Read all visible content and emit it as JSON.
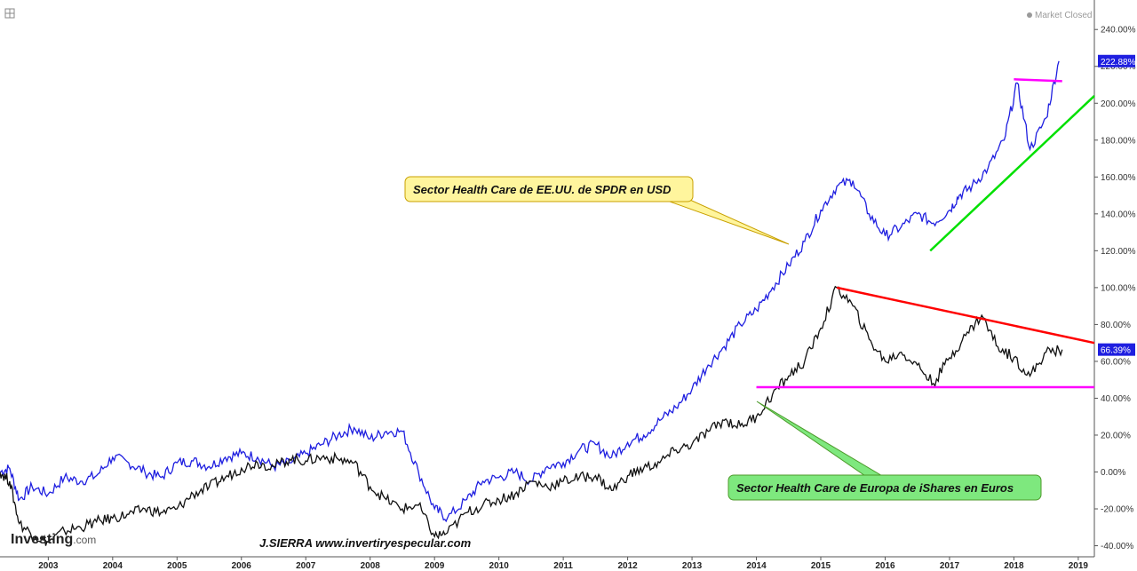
{
  "header": {
    "market_status": "Market Closed",
    "expand_icon": "expand-icon"
  },
  "chart_data": {
    "type": "line",
    "xlabel": "",
    "ylabel": "",
    "x_ticks": [
      "2003",
      "2004",
      "2005",
      "2006",
      "2007",
      "2008",
      "2009",
      "2010",
      "2011",
      "2012",
      "2013",
      "2014",
      "2015",
      "2016",
      "2017",
      "2018",
      "2019"
    ],
    "y_ticks": [
      "240.00%",
      "220.00%",
      "200.00%",
      "180.00%",
      "160.00%",
      "140.00%",
      "120.00%",
      "100.00%",
      "80.00%",
      "60.00%",
      "40.00%",
      "20.00%",
      "0.00%",
      "-20.00%",
      "-40.00%"
    ],
    "xlim": [
      2002.25,
      2019.25
    ],
    "ylim": [
      -46,
      256
    ],
    "grid": false,
    "series": [
      {
        "name": "",
        "color": "#1f1fe0",
        "last_value_label": "222.88%",
        "last_value": 222.88,
        "points": [
          [
            2002.25,
            0
          ],
          [
            2002.4,
            2
          ],
          [
            2002.55,
            -15
          ],
          [
            2002.75,
            -8
          ],
          [
            2003.0,
            -12
          ],
          [
            2003.25,
            -3
          ],
          [
            2003.5,
            -5
          ],
          [
            2003.75,
            -2
          ],
          [
            2004.0,
            8
          ],
          [
            2004.25,
            5
          ],
          [
            2004.5,
            0
          ],
          [
            2004.75,
            -3
          ],
          [
            2005.0,
            5
          ],
          [
            2005.25,
            6
          ],
          [
            2005.5,
            3
          ],
          [
            2005.75,
            8
          ],
          [
            2006.0,
            10
          ],
          [
            2006.25,
            8
          ],
          [
            2006.5,
            3
          ],
          [
            2006.75,
            5
          ],
          [
            2007.0,
            10
          ],
          [
            2007.25,
            15
          ],
          [
            2007.5,
            20
          ],
          [
            2007.75,
            24
          ],
          [
            2008.0,
            18
          ],
          [
            2008.25,
            22
          ],
          [
            2008.5,
            22
          ],
          [
            2008.75,
            0
          ],
          [
            2009.0,
            -20
          ],
          [
            2009.2,
            -25
          ],
          [
            2009.5,
            -15
          ],
          [
            2009.75,
            -5
          ],
          [
            2010.0,
            -3
          ],
          [
            2010.25,
            0
          ],
          [
            2010.5,
            -5
          ],
          [
            2010.75,
            3
          ],
          [
            2011.0,
            5
          ],
          [
            2011.25,
            12
          ],
          [
            2011.5,
            15
          ],
          [
            2011.75,
            8
          ],
          [
            2012.0,
            16
          ],
          [
            2012.25,
            20
          ],
          [
            2012.5,
            28
          ],
          [
            2012.75,
            35
          ],
          [
            2013.0,
            45
          ],
          [
            2013.25,
            58
          ],
          [
            2013.5,
            68
          ],
          [
            2013.75,
            80
          ],
          [
            2014.0,
            88
          ],
          [
            2014.25,
            100
          ],
          [
            2014.5,
            112
          ],
          [
            2014.75,
            125
          ],
          [
            2015.0,
            142
          ],
          [
            2015.25,
            155
          ],
          [
            2015.5,
            158
          ],
          [
            2015.75,
            140
          ],
          [
            2016.0,
            128
          ],
          [
            2016.25,
            133
          ],
          [
            2016.5,
            140
          ],
          [
            2016.75,
            135
          ],
          [
            2017.0,
            142
          ],
          [
            2017.15,
            150
          ],
          [
            2017.35,
            155
          ],
          [
            2017.6,
            165
          ],
          [
            2017.85,
            180
          ],
          [
            2018.05,
            211
          ],
          [
            2018.25,
            175
          ],
          [
            2018.5,
            192
          ],
          [
            2018.7,
            222.88
          ]
        ]
      },
      {
        "name": "",
        "color": "#111111",
        "last_value_label": "66.39%",
        "last_value": 66.39,
        "points": [
          [
            2002.25,
            0
          ],
          [
            2002.4,
            -5
          ],
          [
            2002.55,
            -28
          ],
          [
            2002.8,
            -35
          ],
          [
            2003.0,
            -38
          ],
          [
            2003.25,
            -32
          ],
          [
            2003.5,
            -30
          ],
          [
            2003.75,
            -27
          ],
          [
            2004.0,
            -25
          ],
          [
            2004.25,
            -23
          ],
          [
            2004.5,
            -20
          ],
          [
            2004.75,
            -22
          ],
          [
            2005.0,
            -20
          ],
          [
            2005.25,
            -12
          ],
          [
            2005.5,
            -8
          ],
          [
            2005.75,
            -3
          ],
          [
            2006.0,
            2
          ],
          [
            2006.25,
            5
          ],
          [
            2006.5,
            3
          ],
          [
            2006.75,
            7
          ],
          [
            2007.0,
            6
          ],
          [
            2007.25,
            8
          ],
          [
            2007.5,
            7
          ],
          [
            2007.75,
            5
          ],
          [
            2008.0,
            -8
          ],
          [
            2008.25,
            -15
          ],
          [
            2008.5,
            -20
          ],
          [
            2008.75,
            -18
          ],
          [
            2009.0,
            -35
          ],
          [
            2009.2,
            -33
          ],
          [
            2009.5,
            -22
          ],
          [
            2009.75,
            -18
          ],
          [
            2010.0,
            -15
          ],
          [
            2010.25,
            -12
          ],
          [
            2010.5,
            -5
          ],
          [
            2010.75,
            -8
          ],
          [
            2011.0,
            -5
          ],
          [
            2011.25,
            -3
          ],
          [
            2011.5,
            -2
          ],
          [
            2011.75,
            -10
          ],
          [
            2012.0,
            -2
          ],
          [
            2012.25,
            2
          ],
          [
            2012.5,
            5
          ],
          [
            2012.75,
            12
          ],
          [
            2013.0,
            15
          ],
          [
            2013.25,
            22
          ],
          [
            2013.5,
            28
          ],
          [
            2013.75,
            25
          ],
          [
            2014.0,
            30
          ],
          [
            2014.25,
            42
          ],
          [
            2014.5,
            52
          ],
          [
            2014.75,
            60
          ],
          [
            2015.0,
            78
          ],
          [
            2015.25,
            100
          ],
          [
            2015.5,
            90
          ],
          [
            2015.75,
            72
          ],
          [
            2016.0,
            60
          ],
          [
            2016.25,
            65
          ],
          [
            2016.5,
            58
          ],
          [
            2016.75,
            48
          ],
          [
            2017.0,
            62
          ],
          [
            2017.25,
            74
          ],
          [
            2017.5,
            85
          ],
          [
            2017.75,
            68
          ],
          [
            2018.0,
            62
          ],
          [
            2018.25,
            52
          ],
          [
            2018.5,
            65
          ],
          [
            2018.75,
            66.39
          ]
        ]
      }
    ],
    "trendlines": [
      {
        "name": "blue-resistance",
        "color": "#ff00ff",
        "from": [
          2018.0,
          213
        ],
        "to": [
          2018.75,
          212
        ]
      },
      {
        "name": "blue-support",
        "color": "#00e000",
        "from": [
          2016.7,
          120
        ],
        "to": [
          2019.25,
          204
        ]
      },
      {
        "name": "black-resistance",
        "color": "#ff0000",
        "from": [
          2015.25,
          100
        ],
        "to": [
          2019.25,
          70
        ]
      },
      {
        "name": "black-support",
        "color": "#ff00ff",
        "from": [
          2014.0,
          46
        ],
        "to": [
          2019.25,
          46
        ]
      }
    ],
    "annotations": [
      {
        "text": "Sector Health Care de EE.UU. de SPDR en USD",
        "fill": "#fff59d",
        "stroke": "#c8a000"
      },
      {
        "text": "Sector Health Care de Europa de iShares en Euros",
        "fill": "#7ee87e",
        "stroke": "#4c9a2a"
      }
    ]
  },
  "branding": {
    "logo_main": "Investing",
    "logo_sub": ".com",
    "author": "J.SIERRA  www.invertiryespecular.com"
  }
}
